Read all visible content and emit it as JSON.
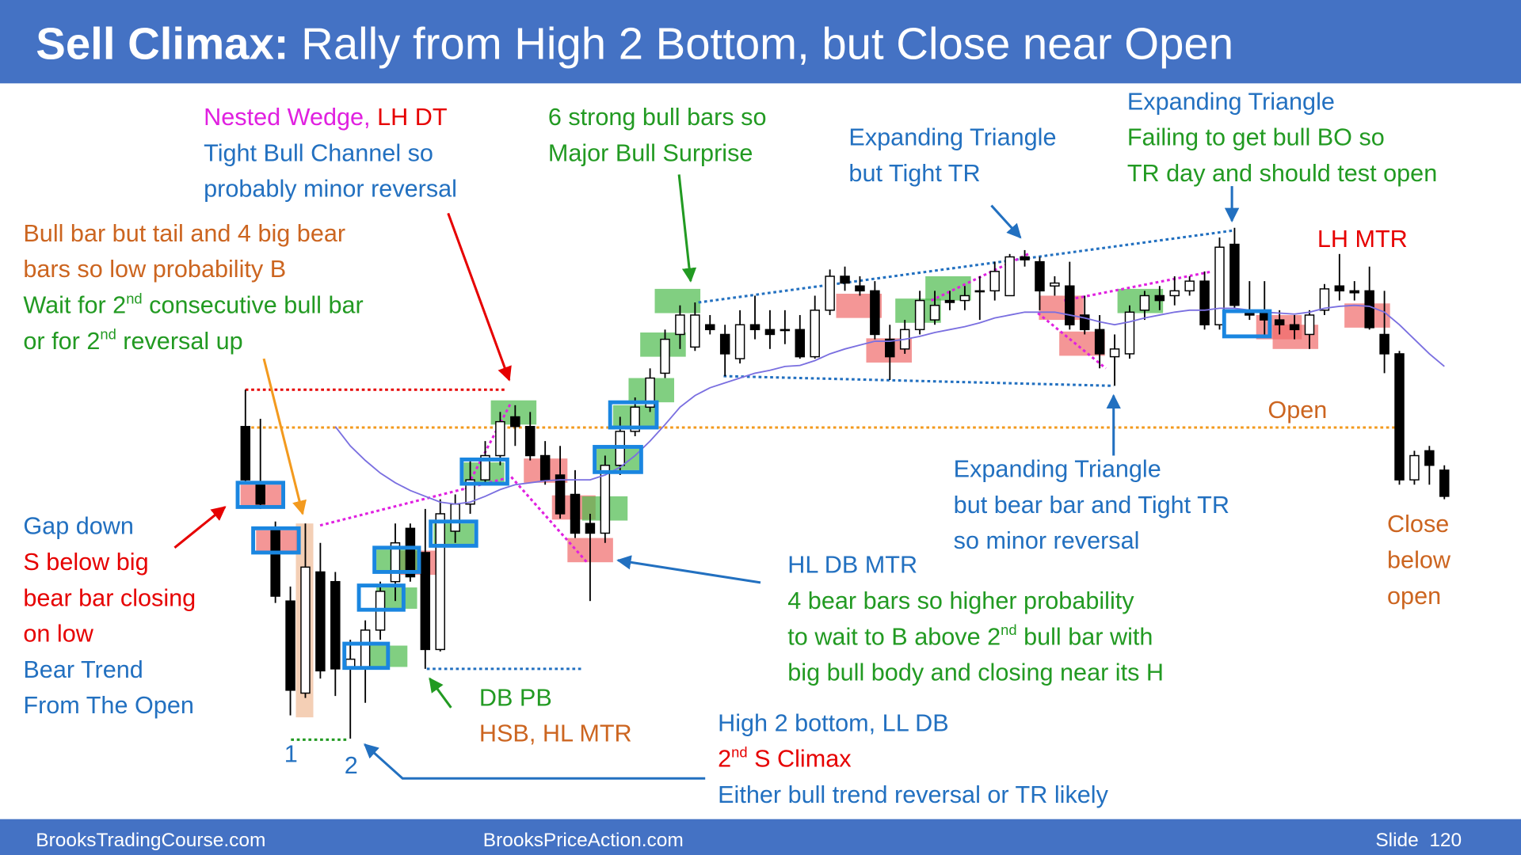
{
  "title": [
    "Sell Climax:",
    " Rally from High 2 Bottom, but Close near Open"
  ],
  "chart_data": {
    "type": "candlestick",
    "ylim": [
      0,
      800
    ],
    "ema_color": "#7a6fe0",
    "open": [
      360,
      300,
      255,
      180,
      85,
      210,
      200,
      110,
      110,
      150,
      200,
      255,
      230,
      130,
      252,
      280,
      305,
      330,
      370,
      360,
      330,
      310,
      290,
      260,
      250,
      320,
      355,
      380,
      415,
      455,
      442,
      465,
      455,
      430,
      465,
      460,
      460,
      460,
      432,
      480,
      515,
      505,
      500,
      450,
      440,
      460,
      470,
      490,
      490,
      500,
      500,
      495,
      535,
      530,
      505,
      505,
      475,
      460,
      432,
      435,
      480,
      495,
      495,
      500,
      510,
      465,
      548,
      480,
      478,
      470,
      465,
      455,
      480,
      505,
      500,
      500,
      455,
      435,
      305,
      335,
      315
    ],
    "high": [
      398,
      368,
      262,
      195,
      260,
      240,
      210,
      140,
      160,
      200,
      260,
      260,
      275,
      285,
      290,
      325,
      345,
      375,
      382,
      375,
      345,
      340,
      315,
      270,
      330,
      370,
      390,
      420,
      460,
      485,
      488,
      475,
      465,
      480,
      495,
      480,
      480,
      475,
      495,
      522,
      525,
      515,
      510,
      465,
      470,
      500,
      500,
      500,
      505,
      515,
      530,
      538,
      542,
      535,
      515,
      530,
      495,
      475,
      455,
      485,
      500,
      505,
      515,
      515,
      520,
      555,
      565,
      510,
      510,
      480,
      475,
      480,
      507,
      538,
      510,
      525,
      500,
      438,
      335,
      340,
      320
    ],
    "low": [
      303,
      275,
      178,
      62,
      80,
      100,
      82,
      38,
      75,
      140,
      180,
      200,
      110,
      128,
      240,
      270,
      300,
      320,
      340,
      325,
      300,
      265,
      245,
      180,
      240,
      310,
      350,
      375,
      410,
      440,
      438,
      455,
      412,
      425,
      450,
      440,
      445,
      430,
      430,
      475,
      500,
      495,
      450,
      408,
      435,
      455,
      465,
      480,
      480,
      470,
      490,
      495,
      525,
      480,
      495,
      460,
      455,
      420,
      402,
      430,
      470,
      480,
      485,
      495,
      460,
      460,
      482,
      470,
      455,
      455,
      450,
      440,
      475,
      490,
      490,
      460,
      415,
      300,
      300,
      300,
      285
    ],
    "close": [
      305,
      280,
      185,
      88,
      215,
      108,
      110,
      120,
      150,
      190,
      240,
      205,
      130,
      270,
      280,
      305,
      330,
      365,
      360,
      330,
      305,
      270,
      250,
      250,
      320,
      355,
      380,
      410,
      450,
      475,
      475,
      460,
      435,
      465,
      460,
      455,
      460,
      432,
      480,
      515,
      508,
      500,
      455,
      432,
      460,
      490,
      485,
      488,
      495,
      500,
      520,
      535,
      532,
      500,
      508,
      465,
      460,
      435,
      440,
      478,
      495,
      490,
      500,
      510,
      465,
      545,
      485,
      475,
      470,
      465,
      460,
      475,
      502,
      500,
      498,
      462,
      435,
      305,
      330,
      320,
      288
    ],
    "ema": [
      null,
      null,
      null,
      null,
      null,
      null,
      360,
      340,
      325,
      312,
      302,
      294,
      288,
      282,
      280,
      282,
      288,
      295,
      300,
      302,
      304,
      305,
      305,
      305,
      310,
      318,
      330,
      345,
      362,
      380,
      392,
      400,
      405,
      410,
      415,
      418,
      422,
      423,
      428,
      435,
      440,
      444,
      448,
      448,
      450,
      453,
      457,
      460,
      463,
      467,
      472,
      475,
      478,
      478,
      478,
      475,
      472,
      468,
      465,
      468,
      472,
      475,
      478,
      480,
      480,
      482,
      482,
      480,
      478,
      477,
      476,
      478,
      482,
      484,
      485,
      484,
      478,
      465,
      450,
      435,
      422
    ]
  },
  "annotations": [
    {
      "lines": [
        [
          "Nested Wedge, ",
          "LH DT"
        ],
        [
          "Tight Bull Channel so"
        ],
        [
          "probably minor reversal"
        ]
      ]
    },
    {
      "lines": [
        [
          "Bull bar but tail and 4 big bear"
        ],
        [
          "bars so low probability B"
        ],
        [
          "Wait for 2",
          "nd",
          " consecutive bull bar"
        ],
        [
          "or for 2",
          "nd",
          " reversal up"
        ]
      ]
    },
    {
      "lines": [
        [
          "6 strong bull bars so"
        ],
        [
          "Major Bull Surprise"
        ]
      ]
    },
    {
      "lines": [
        [
          "Expanding Triangle"
        ],
        [
          "but Tight TR"
        ]
      ]
    },
    {
      "lines": [
        [
          "Expanding Triangle"
        ],
        [
          "Failing to get bull BO so"
        ],
        [
          "TR day and should test open"
        ]
      ]
    },
    {
      "lines": [
        [
          "LH MTR"
        ]
      ]
    },
    {
      "lines": [
        [
          "Open"
        ]
      ]
    },
    {
      "lines": [
        [
          "Expanding Triangle"
        ],
        [
          "but bear bar and Tight TR"
        ],
        [
          "so minor reversal"
        ]
      ]
    },
    {
      "lines": [
        [
          "HL DB MTR"
        ],
        [
          "4 bear bars so higher probability"
        ],
        [
          "to wait to B above 2",
          "nd",
          " bull bar with"
        ],
        [
          "big bull body and closing near its H"
        ]
      ]
    },
    {
      "lines": [
        [
          "Close"
        ],
        [
          "below"
        ],
        [
          "open"
        ]
      ]
    },
    {
      "lines": [
        [
          "Gap down"
        ],
        [
          "S below big"
        ],
        [
          "bear bar closing"
        ],
        [
          "on low"
        ],
        [
          "Bear Trend"
        ],
        [
          "From The Open"
        ]
      ]
    },
    {
      "lines": [
        [
          "DB PB"
        ],
        [
          "HSB, HL MTR"
        ]
      ]
    },
    {
      "lines": [
        [
          "High 2 bottom, LL DB"
        ],
        [
          "2",
          "nd",
          " S Climax"
        ],
        [
          "Either bull trend reversal or TR likely"
        ]
      ]
    }
  ],
  "labels": [
    "1",
    "2"
  ],
  "footer": [
    "BrooksTradingCourse.com",
    "BrooksPriceAction.com",
    "Slide  120"
  ]
}
